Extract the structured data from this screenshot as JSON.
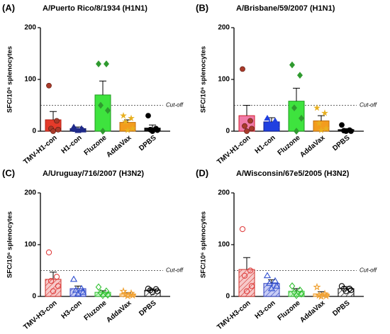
{
  "chart_data": [
    {
      "type": "bar",
      "panel": "(A)",
      "title": "A/Puerto Rico/8/1934 (H1N1)",
      "ylabel": "SFC/10⁶ splenocytes",
      "categories": [
        "TMV-H1-con",
        "H1-con",
        "Fluzone",
        "AddaVax",
        "DPBS"
      ],
      "values": [
        22,
        5,
        70,
        17,
        6
      ],
      "errors": [
        16,
        3,
        27,
        5,
        6
      ],
      "points": [
        [
          88,
          20,
          5,
          3,
          0
        ],
        [
          8,
          5,
          3,
          2,
          1
        ],
        [
          130,
          130,
          50,
          40,
          0
        ],
        [
          30,
          25,
          18,
          5,
          2
        ],
        [
          30,
          5,
          3,
          2,
          0
        ]
      ],
      "colors": [
        "#e53b2a",
        "#1f2a8a",
        "#3ee33e",
        "#f39c1d",
        "#111111"
      ],
      "edge_colors": [
        "#b22015",
        "#111a60",
        "#1f9a1f",
        "#c07010",
        "#000000"
      ],
      "point_colors": [
        "#a83a2a",
        "#1f2a8a",
        "#2f9a2f",
        "#e8b020",
        "#000000"
      ],
      "markers": [
        "circle",
        "triangle",
        "diamond",
        "star",
        "circle"
      ],
      "pattern": "solid",
      "hollow_points": false,
      "cutoff": {
        "value": 50,
        "text": "Cut-off"
      },
      "ylim": [
        0,
        200
      ],
      "yticks": [
        0,
        100,
        200
      ]
    },
    {
      "type": "bar",
      "panel": "(B)",
      "title": "A/Brisbane/59/2007 (H1N1)",
      "ylabel": "SFC/10⁶ splenocytes",
      "categories": [
        "TMV-H1-con",
        "H1-con",
        "Fluzone",
        "AddaVax",
        "DPBS"
      ],
      "values": [
        30,
        18,
        58,
        20,
        3
      ],
      "errors": [
        20,
        8,
        25,
        10,
        2
      ],
      "points": [
        [
          120,
          20,
          10,
          5,
          0
        ],
        [
          25,
          20,
          15,
          10,
          5
        ],
        [
          128,
          108,
          45,
          25,
          0
        ],
        [
          45,
          35,
          15,
          5,
          2
        ],
        [
          12,
          2,
          1,
          0,
          0
        ]
      ],
      "colors": [
        "#f07aa8",
        "#2040e0",
        "#3ee33e",
        "#f39c1d",
        "#111111"
      ],
      "edge_colors": [
        "#d0202a",
        "#102090",
        "#1f9a1f",
        "#c07010",
        "#000000"
      ],
      "point_colors": [
        "#a83a2a",
        "#2040e0",
        "#2f9a2f",
        "#e8b020",
        "#000000"
      ],
      "markers": [
        "circle",
        "triangle",
        "diamond",
        "star",
        "circle"
      ],
      "pattern": "solid",
      "hollow_points": false,
      "cutoff": {
        "value": 50,
        "text": "Cut-off"
      },
      "ylim": [
        0,
        200
      ],
      "yticks": [
        0,
        100,
        200
      ]
    },
    {
      "type": "bar",
      "panel": "(C)",
      "title": "A/Uruguay/716/2007 (H3N2)",
      "ylabel": "SFC/10⁶ splenocytes",
      "categories": [
        "TMV-H3-con",
        "H3-con",
        "Fluzone",
        "AddaVax",
        "DPBS"
      ],
      "values": [
        33,
        15,
        8,
        5,
        12
      ],
      "errors": [
        14,
        5,
        3,
        2,
        2
      ],
      "points": [
        [
          85,
          38,
          30,
          20,
          10
        ],
        [
          33,
          15,
          12,
          8,
          5
        ],
        [
          18,
          10,
          7,
          3,
          2
        ],
        [
          10,
          6,
          4,
          2,
          1
        ],
        [
          15,
          14,
          12,
          10,
          8
        ]
      ],
      "colors": [
        "#f7c9c9",
        "#c8cdf5",
        "#c9f5c9",
        "#fbe0bb",
        "#ffffff"
      ],
      "edge_colors": [
        "#d0302a",
        "#3040c0",
        "#30c030",
        "#f0a030",
        "#000000"
      ],
      "point_colors": [
        "#e04040",
        "#3050d0",
        "#30c030",
        "#f0a030",
        "#000000"
      ],
      "markers": [
        "circle",
        "triangle",
        "diamond",
        "star",
        "circle"
      ],
      "pattern": "hatch",
      "hollow_points": true,
      "cutoff": {
        "value": 50,
        "text": "Cut-off"
      },
      "ylim": [
        0,
        200
      ],
      "yticks": [
        0,
        100,
        200
      ]
    },
    {
      "type": "bar",
      "panel": "(D)",
      "title": "A/Wisconsin/67e5/2005 (H3N2)",
      "ylabel": "SFC/10⁶ splenocytes",
      "categories": [
        "TMV-H3-con",
        "H3-con",
        "Fluzone",
        "AddaVax",
        "DPBS"
      ],
      "values": [
        52,
        25,
        10,
        5,
        15
      ],
      "errors": [
        23,
        7,
        5,
        4,
        4
      ],
      "points": [
        [
          130,
          50,
          40,
          20,
          10
        ],
        [
          40,
          30,
          25,
          20,
          15
        ],
        [
          20,
          12,
          8,
          5,
          2
        ],
        [
          18,
          5,
          2,
          1,
          0
        ],
        [
          20,
          15,
          15,
          12,
          10
        ]
      ],
      "colors": [
        "#f7c9c9",
        "#c8cdf5",
        "#c9f5c9",
        "#fbe0bb",
        "#ffffff"
      ],
      "edge_colors": [
        "#d0302a",
        "#3040c0",
        "#30c030",
        "#f0a030",
        "#000000"
      ],
      "point_colors": [
        "#e04040",
        "#3050d0",
        "#30c030",
        "#f0a030",
        "#000000"
      ],
      "markers": [
        "circle",
        "triangle",
        "diamond",
        "star",
        "circle"
      ],
      "pattern": "hatch",
      "hollow_points": true,
      "cutoff": {
        "value": 50,
        "text": "Cut-off"
      },
      "ylim": [
        0,
        200
      ],
      "yticks": [
        0,
        100,
        200
      ]
    }
  ]
}
